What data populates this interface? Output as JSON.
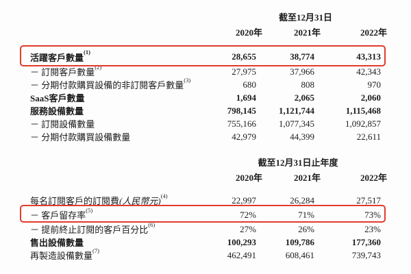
{
  "accent": {
    "highlight_red": "#e23a2c"
  },
  "table1": {
    "period_header": "截至12月31日",
    "years": [
      "2020年",
      "2021年",
      "2022年"
    ],
    "rows": [
      {
        "label": "活躍客戶數量",
        "sup": "(1)",
        "bold": true,
        "highlighted": true,
        "values": [
          "28,655",
          "38,774",
          "43,313"
        ]
      },
      {
        "label": "－ 訂閱客戶數量",
        "sup": "(2)",
        "bold": false,
        "highlighted": false,
        "values": [
          "27,975",
          "37,966",
          "42,343"
        ]
      },
      {
        "label": "－ 分期付款購買設備的非訂閱客戶數量",
        "sup": "(3)",
        "bold": false,
        "highlighted": false,
        "values": [
          "680",
          "808",
          "970"
        ]
      },
      {
        "label": "SaaS客戶數量",
        "bold": true,
        "highlighted": false,
        "values": [
          "1,694",
          "2,065",
          "2,060"
        ]
      },
      {
        "label": "服務設備數量",
        "bold": true,
        "highlighted": false,
        "values": [
          "798,145",
          "1,121,744",
          "1,115,468"
        ]
      },
      {
        "label": "－ 訂閱設備數量",
        "bold": false,
        "highlighted": false,
        "values": [
          "755,166",
          "1,077,345",
          "1,092,857"
        ]
      },
      {
        "label": "－ 分期付款購買設備數量",
        "bold": false,
        "highlighted": false,
        "values": [
          "42,979",
          "44,399",
          "22,611"
        ]
      }
    ]
  },
  "table2": {
    "period_header": "截至12月31日止年度",
    "years": [
      "2020年",
      "2021年",
      "2022年"
    ],
    "rows": [
      {
        "label": "每名訂閱客戶的訂閱費",
        "note": "(人民幣元)",
        "sup": "(4)",
        "bold": false,
        "highlighted": false,
        "values": [
          "22,997",
          "26,284",
          "27,517"
        ]
      },
      {
        "label": "－ 客戶留存率",
        "sup": "(5)",
        "bold": false,
        "highlighted": true,
        "values": [
          "72%",
          "71%",
          "73%"
        ]
      },
      {
        "label": "－ 提前終止訂閱的客戶百分比",
        "sup": "(6)",
        "bold": false,
        "highlighted": false,
        "values": [
          "27%",
          "26%",
          "23%"
        ]
      },
      {
        "label": "售出設備數量",
        "bold": true,
        "highlighted": false,
        "values": [
          "100,293",
          "109,786",
          "177,360"
        ]
      },
      {
        "label": "再製造設備數量",
        "sup": "(7)",
        "bold": false,
        "highlighted": false,
        "values": [
          "462,491",
          "608,461",
          "739,743"
        ]
      }
    ]
  }
}
